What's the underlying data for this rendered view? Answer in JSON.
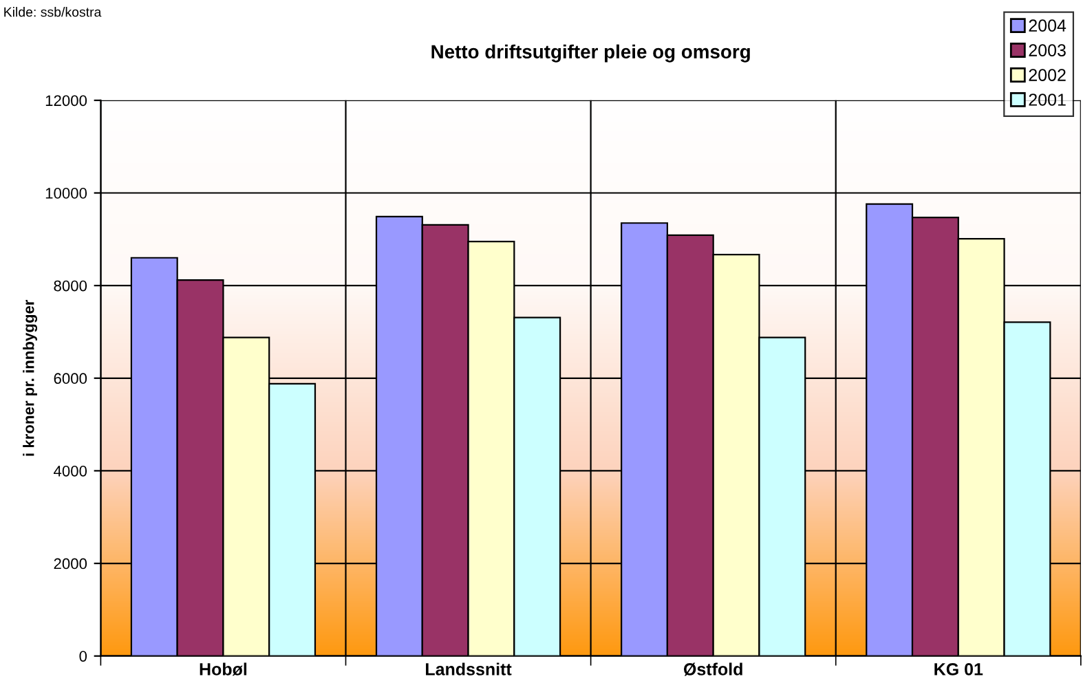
{
  "chart_data": {
    "type": "bar",
    "title": "Netto driftsutgifter pleie og omsorg",
    "ylabel": "i kroner pr. innbygger",
    "annotations": [
      "Kilde: ssb/kostra"
    ],
    "categories": [
      "Hobøl",
      "Landssnitt",
      "Østfold",
      "KG 01"
    ],
    "series": [
      {
        "name": "2004",
        "color": "#9999ff",
        "values": [
          8600,
          9490,
          9350,
          9760
        ]
      },
      {
        "name": "2003",
        "color": "#993366",
        "values": [
          8120,
          9310,
          9090,
          9470
        ]
      },
      {
        "name": "2002",
        "color": "#ffffcc",
        "values": [
          6880,
          8950,
          8670,
          9010
        ]
      },
      {
        "name": "2001",
        "color": "#ccffff",
        "values": [
          5880,
          7310,
          6880,
          7210
        ]
      }
    ],
    "ylim": [
      0,
      12000
    ],
    "yticks": [
      0,
      2000,
      4000,
      6000,
      8000,
      10000,
      12000
    ],
    "grid": true,
    "legend": "top right"
  }
}
